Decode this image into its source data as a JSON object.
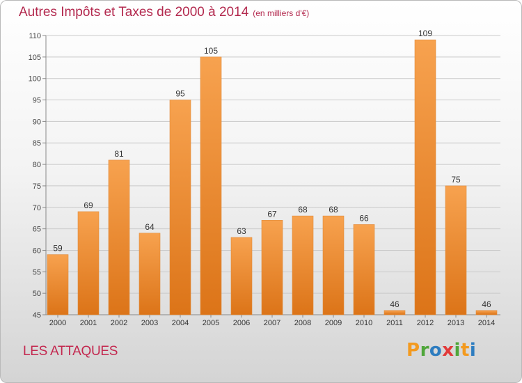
{
  "header": {
    "title": "Autres Impôts et Taxes de 2000 à 2014",
    "unit": "(en milliers d'€)"
  },
  "footer": {
    "city": "LES ATTAQUES",
    "logo_text": "Proxiti"
  },
  "colors": {
    "title": "#b3294e",
    "bar_top": "#f7a24f",
    "bar_bottom": "#dc7418",
    "grid": "#c9c9c9",
    "logo_letters": [
      "#f39a1f",
      "#4fa63a",
      "#2e7dc0",
      "#e23a3a",
      "#4fa63a",
      "#f39a1f",
      "#2e7dc0"
    ]
  },
  "chart_data": {
    "type": "bar",
    "title": "Autres Impôts et Taxes de 2000 à 2014",
    "subtitle": "(en milliers d'€)",
    "categories": [
      "2000",
      "2001",
      "2002",
      "2003",
      "2004",
      "2005",
      "2006",
      "2007",
      "2008",
      "2009",
      "2010",
      "2011",
      "2012",
      "2013",
      "2014"
    ],
    "values": [
      59,
      69,
      81,
      64,
      95,
      105,
      63,
      67,
      68,
      68,
      66,
      46,
      109,
      75,
      46
    ],
    "ylim": [
      45,
      110
    ],
    "yticks": [
      45,
      50,
      55,
      60,
      65,
      70,
      75,
      80,
      85,
      90,
      95,
      100,
      105,
      110
    ],
    "grid": true,
    "xlabel": "",
    "ylabel": ""
  }
}
